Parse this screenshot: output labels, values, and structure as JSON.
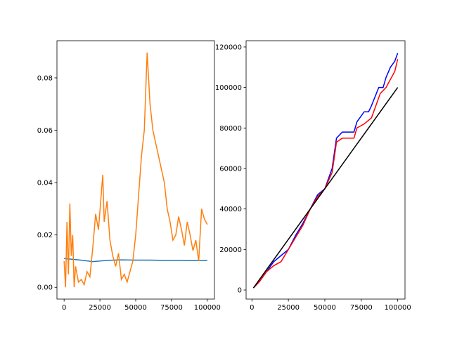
{
  "chart_data": [
    {
      "type": "line",
      "xlim": [
        -5000,
        105000
      ],
      "xticks": [
        0,
        25000,
        50000,
        75000,
        100000
      ],
      "ylim": [
        -0.0045,
        0.0942
      ],
      "yticks": [
        {
          "value": 0,
          "label": "0.00"
        },
        {
          "value": 0.02,
          "label": "0.02"
        },
        {
          "value": 0.04,
          "label": "0.04"
        },
        {
          "value": 0.06,
          "label": "0.06"
        },
        {
          "value": 0.08,
          "label": "0.08"
        }
      ],
      "series": [
        {
          "color": "#1f77b4",
          "x": [
            0,
            10000,
            20000,
            30000,
            40000,
            50000,
            60000,
            70000,
            80000,
            90000,
            100000
          ],
          "values": [
            0.011,
            0.0105,
            0.0098,
            0.0103,
            0.0105,
            0.0104,
            0.0104,
            0.0103,
            0.0103,
            0.0102,
            0.0103
          ]
        },
        {
          "color": "#ff7f0e",
          "x": [
            0,
            1000,
            2000,
            3000,
            4000,
            5000,
            6000,
            7000,
            8000,
            10000,
            12000,
            14000,
            16000,
            18000,
            20000,
            22000,
            24000,
            26000,
            27000,
            28000,
            30000,
            32000,
            34000,
            36000,
            38000,
            40000,
            42000,
            44000,
            46000,
            48000,
            50000,
            52000,
            54000,
            56000,
            57000,
            58000,
            60000,
            62000,
            64000,
            66000,
            68000,
            70000,
            72000,
            74000,
            76000,
            78000,
            80000,
            82000,
            84000,
            86000,
            88000,
            90000,
            92000,
            94000,
            96000,
            98000,
            100000
          ],
          "values": [
            0.01,
            0.0,
            0.025,
            0.005,
            0.032,
            0.012,
            0.02,
            0.0,
            0.008,
            0.002,
            0.003,
            0.001,
            0.006,
            0.004,
            0.015,
            0.028,
            0.022,
            0.036,
            0.043,
            0.025,
            0.033,
            0.018,
            0.012,
            0.008,
            0.013,
            0.003,
            0.005,
            0.002,
            0.006,
            0.01,
            0.02,
            0.035,
            0.05,
            0.06,
            0.075,
            0.0897,
            0.07,
            0.06,
            0.055,
            0.05,
            0.045,
            0.04,
            0.03,
            0.025,
            0.018,
            0.02,
            0.027,
            0.022,
            0.016,
            0.025,
            0.02,
            0.014,
            0.018,
            0.01,
            0.03,
            0.026,
            0.024
          ]
        }
      ]
    },
    {
      "type": "line",
      "xlim": [
        -4000,
        105000
      ],
      "xticks": [
        0,
        25000,
        50000,
        75000,
        100000
      ],
      "ylim": [
        -4500,
        123100
      ],
      "yticks": [
        0,
        20000,
        40000,
        60000,
        80000,
        100000,
        120000
      ],
      "series": [
        {
          "color": "blue",
          "x": [
            1000,
            5000,
            10000,
            15000,
            20000,
            25000,
            30000,
            35000,
            40000,
            45000,
            50000,
            55000,
            58000,
            62000,
            70000,
            72000,
            77000,
            80000,
            82000,
            87000,
            90000,
            92000,
            95000,
            98000,
            100000
          ],
          "values": [
            1000,
            4000,
            9000,
            14000,
            17000,
            20000,
            27000,
            33000,
            40000,
            47000,
            50000,
            60000,
            75000,
            78000,
            78000,
            83000,
            88000,
            88000,
            91000,
            100000,
            100000,
            105000,
            110000,
            113000,
            117000
          ]
        },
        {
          "color": "red",
          "x": [
            1000,
            5000,
            10000,
            15000,
            20000,
            25000,
            30000,
            35000,
            40000,
            45000,
            50000,
            55000,
            58000,
            62000,
            70000,
            72000,
            77000,
            82000,
            85000,
            88000,
            92000,
            95000,
            98000,
            100000
          ],
          "values": [
            1000,
            4000,
            9000,
            12000,
            14000,
            20000,
            26000,
            32000,
            40000,
            46000,
            50000,
            58000,
            73000,
            75000,
            75000,
            80000,
            82000,
            85000,
            91000,
            97000,
            100000,
            104000,
            108000,
            114000
          ]
        },
        {
          "color": "black",
          "x": [
            1000,
            100000
          ],
          "values": [
            1000,
            100000
          ]
        }
      ]
    }
  ]
}
